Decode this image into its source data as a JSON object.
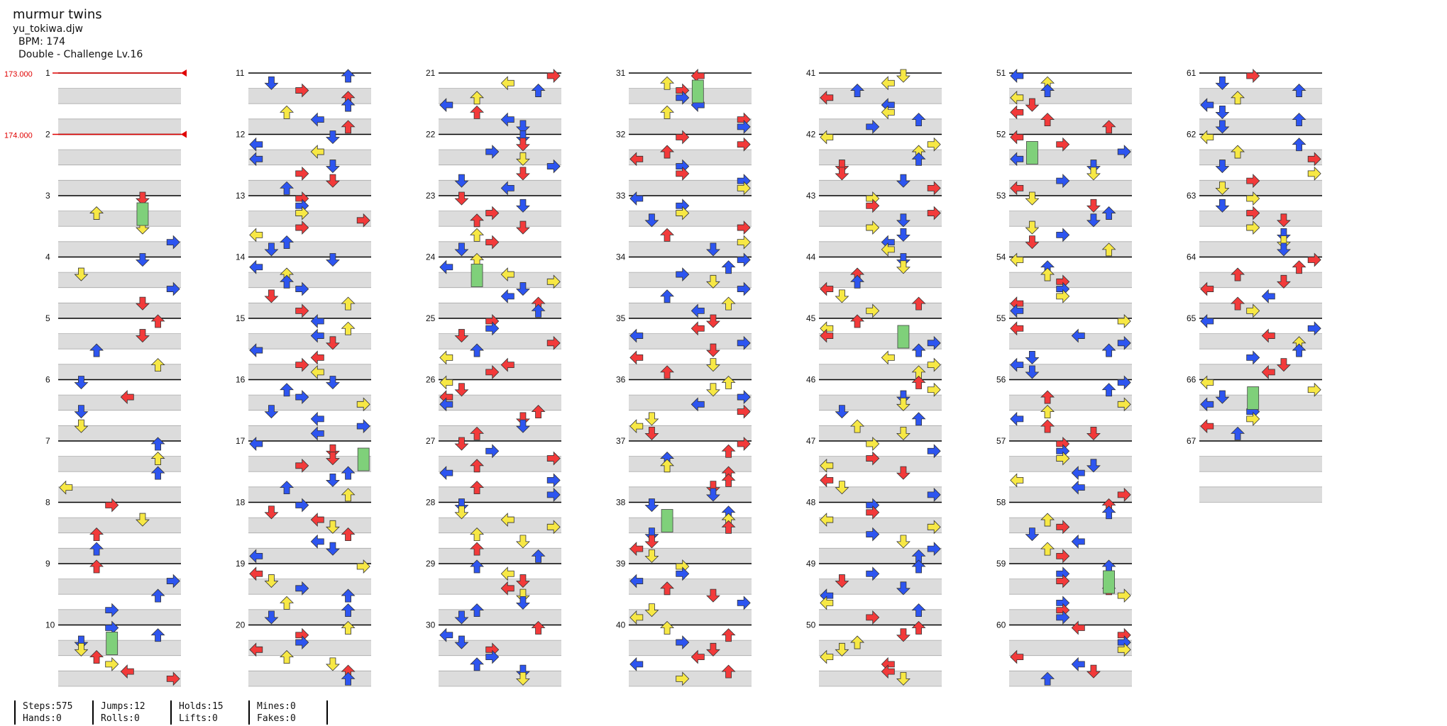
{
  "song": {
    "title": "murmur twins",
    "file": "yu_tokiwa.djw",
    "bpm_label": "BPM: 174",
    "difficulty": "Double - Challenge Lv.16"
  },
  "bpm_changes": [
    {
      "beat_label": "173.000"
    },
    {
      "beat_label": "174.000"
    }
  ],
  "measure_count": 67,
  "colors": {
    "red": "#f23a3a",
    "blue": "#2d55f0",
    "yellow": "#f7e845",
    "purple": "#b25bf5",
    "hold": "#7fd07a",
    "bpm_line": "#e00000",
    "stripe": "#dcdcdc"
  },
  "stats": {
    "col1": [
      "Steps:575",
      "Hands:0"
    ],
    "col2": [
      "Jumps:12",
      "Rolls:0"
    ],
    "col3": [
      "Holds:15",
      "Lifts:0"
    ],
    "col4": [
      "Mines:0",
      "Fakes:0"
    ]
  }
}
